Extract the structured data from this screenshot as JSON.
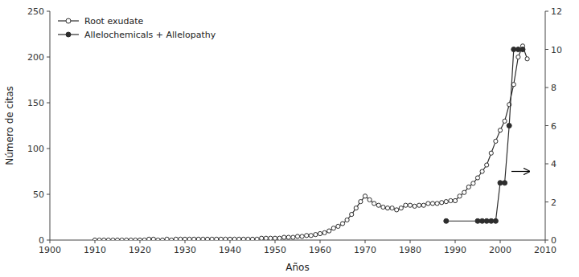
{
  "chart_data": {
    "type": "line",
    "xlabel": "Años",
    "ylabel": "Número de citas",
    "xlim": [
      1900,
      2010
    ],
    "xticks": [
      1900,
      1910,
      1920,
      1930,
      1940,
      1950,
      1960,
      1970,
      1980,
      1990,
      2000,
      2010
    ],
    "ylim": [
      0,
      250
    ],
    "yticks": [
      0,
      50,
      100,
      150,
      200,
      250
    ],
    "y2lim": [
      0,
      12
    ],
    "y2ticks": [
      0,
      2,
      4,
      6,
      8,
      10,
      12
    ],
    "grid": false,
    "legend": "upper left",
    "series": [
      {
        "name": "Root exudate",
        "color": "#2d2d2d",
        "marker": "open-circle",
        "x": [
          1910,
          1911,
          1912,
          1913,
          1914,
          1915,
          1916,
          1917,
          1918,
          1919,
          1920,
          1921,
          1922,
          1923,
          1924,
          1925,
          1926,
          1927,
          1928,
          1929,
          1930,
          1931,
          1932,
          1933,
          1934,
          1935,
          1936,
          1937,
          1938,
          1939,
          1940,
          1941,
          1942,
          1943,
          1944,
          1945,
          1946,
          1947,
          1948,
          1949,
          1950,
          1951,
          1952,
          1953,
          1954,
          1955,
          1956,
          1957,
          1958,
          1959,
          1960,
          1961,
          1962,
          1963,
          1964,
          1965,
          1966,
          1967,
          1968,
          1969,
          1970,
          1971,
          1972,
          1973,
          1974,
          1975,
          1976,
          1977,
          1978,
          1979,
          1980,
          1981,
          1982,
          1983,
          1984,
          1985,
          1986,
          1987,
          1988,
          1989,
          1990,
          1991,
          1992,
          1993,
          1994,
          1995,
          1996,
          1997,
          1998,
          1999,
          2000,
          2001,
          2002,
          2003,
          2004,
          2005,
          2006
        ],
        "values": [
          0,
          0,
          0,
          0,
          0,
          0,
          0,
          0,
          0,
          0,
          0,
          0,
          1,
          1,
          0,
          0,
          1,
          0,
          1,
          1,
          1,
          1,
          1,
          1,
          1,
          1,
          1,
          1,
          1,
          1,
          1,
          1,
          1,
          1,
          1,
          1,
          1,
          2,
          2,
          2,
          2,
          2,
          3,
          3,
          3,
          4,
          4,
          5,
          5,
          6,
          7,
          8,
          10,
          13,
          15,
          18,
          22,
          28,
          35,
          42,
          48,
          44,
          40,
          38,
          36,
          35,
          35,
          33,
          35,
          38,
          38,
          37,
          38,
          38,
          40,
          40,
          40,
          41,
          42,
          43,
          43,
          48,
          52,
          58,
          62,
          68,
          75,
          82,
          95,
          108,
          120,
          130,
          148,
          170,
          200,
          212,
          198
        ]
      },
      {
        "name": "Allelochemicals + Allelopathy",
        "color": "#2d2d2d",
        "marker": "circle",
        "axis": "y2",
        "x": [
          1988,
          1995,
          1996,
          1997,
          1998,
          1999,
          2000,
          2001,
          2002,
          2003,
          2004,
          2005
        ],
        "values": [
          1,
          1,
          1,
          1,
          1,
          1,
          3,
          3,
          6,
          10,
          10,
          10
        ]
      }
    ],
    "annotations": [
      {
        "type": "arrow",
        "x": [
          2002.5,
          2006.5
        ],
        "y": 75
      }
    ]
  }
}
